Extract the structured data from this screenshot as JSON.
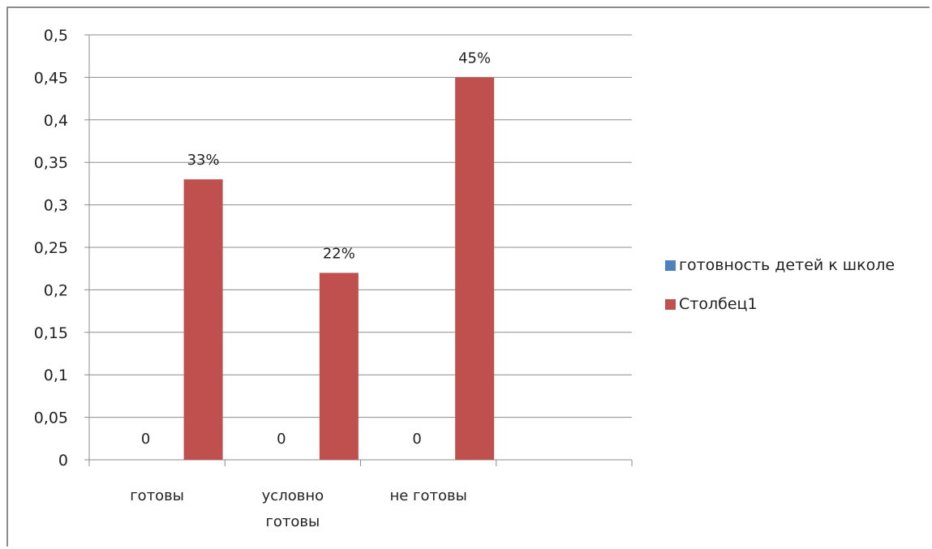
{
  "chart_data": {
    "type": "bar",
    "categories": [
      [
        "готовы"
      ],
      [
        "условно",
        "готовы"
      ],
      [
        "не готовы"
      ],
      [
        ""
      ]
    ],
    "series": [
      {
        "name": "готовность детей к школе",
        "color": "#4f81bd",
        "values": [
          0,
          0,
          0,
          null
        ],
        "labels": [
          "0",
          "0",
          "0",
          ""
        ]
      },
      {
        "name": "Столбец1",
        "color": "#c0504d",
        "values": [
          0.33,
          0.22,
          0.45,
          null
        ],
        "labels": [
          "33%",
          "22%",
          "45%",
          ""
        ]
      }
    ],
    "y_ticks": [
      "0",
      "0,05",
      "0,1",
      "0,15",
      "0,2",
      "0,25",
      "0,3",
      "0,35",
      "0,4",
      "0,45",
      "0,5"
    ],
    "ylim": [
      0,
      0.5
    ],
    "grid": true,
    "legend_position": "right"
  }
}
